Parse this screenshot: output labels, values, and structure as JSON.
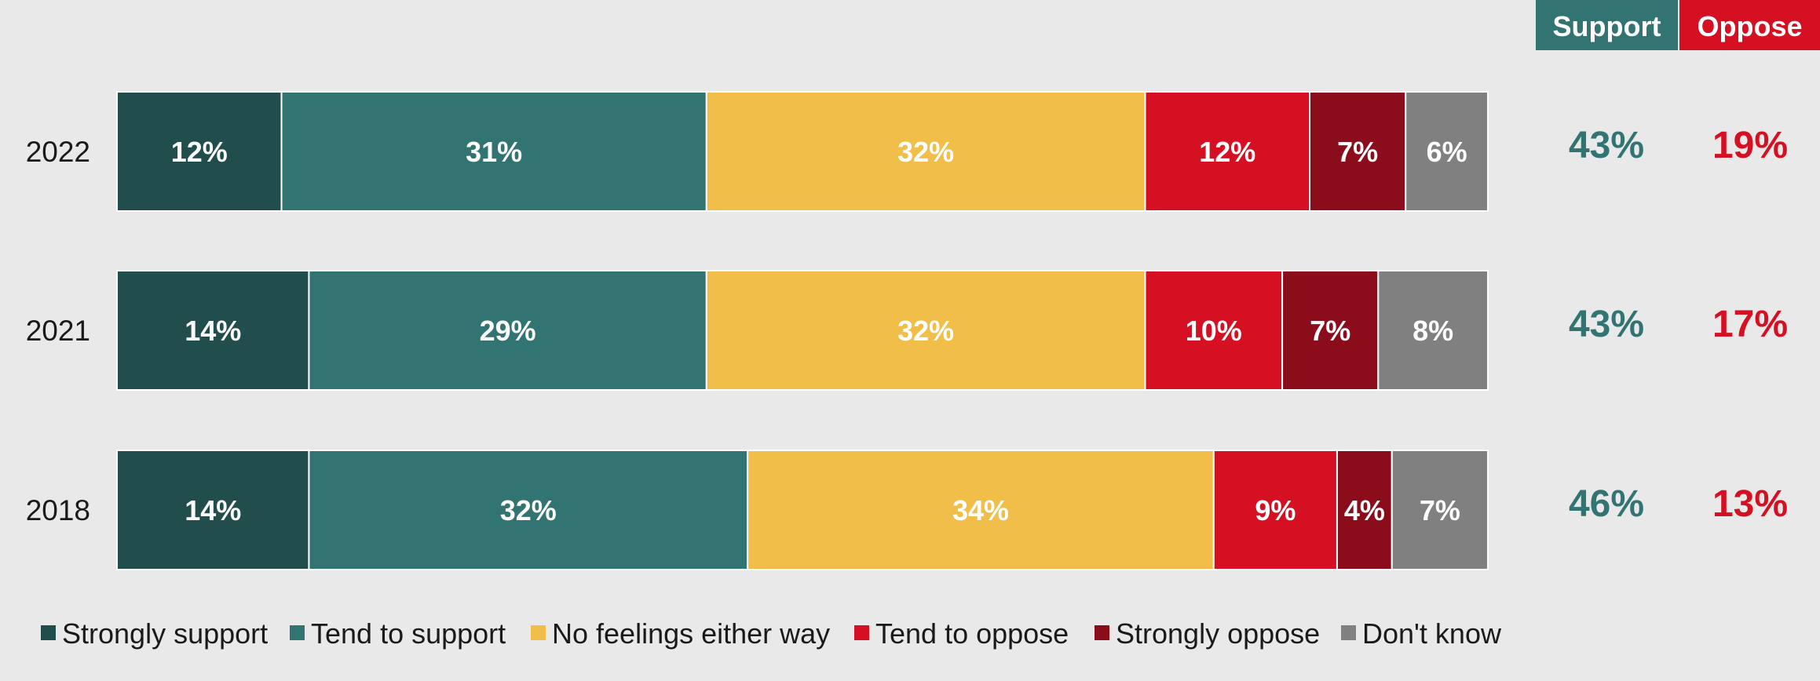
{
  "chart_data": {
    "type": "bar",
    "orientation": "horizontal",
    "stacked": true,
    "percent_labels": true,
    "categories": [
      "2022",
      "2021",
      "2018"
    ],
    "series": [
      {
        "name": "Strongly support",
        "color": "#214d4d",
        "values": [
          12,
          14,
          14
        ]
      },
      {
        "name": "Tend to support",
        "color": "#317472",
        "values": [
          31,
          29,
          32
        ]
      },
      {
        "name": "No feelings either way",
        "color": "#f0be49",
        "values": [
          32,
          32,
          34
        ]
      },
      {
        "name": "Tend to oppose",
        "color": "#d51022",
        "values": [
          12,
          10,
          9
        ]
      },
      {
        "name": "Strongly oppose",
        "color": "#8b0c1a",
        "values": [
          7,
          7,
          4
        ]
      },
      {
        "name": "Don't know",
        "color": "#808080",
        "values": [
          6,
          8,
          7
        ]
      }
    ],
    "summary_columns": [
      {
        "label": "Support",
        "color": "#317472",
        "header_color": "#317472",
        "values": [
          "43%",
          "43%",
          "46%"
        ]
      },
      {
        "label": "Oppose",
        "color": "#d51022",
        "header_color": "#d51022",
        "values": [
          "19%",
          "17%",
          "13%"
        ]
      }
    ],
    "legend_position": "bottom",
    "grid": false
  }
}
